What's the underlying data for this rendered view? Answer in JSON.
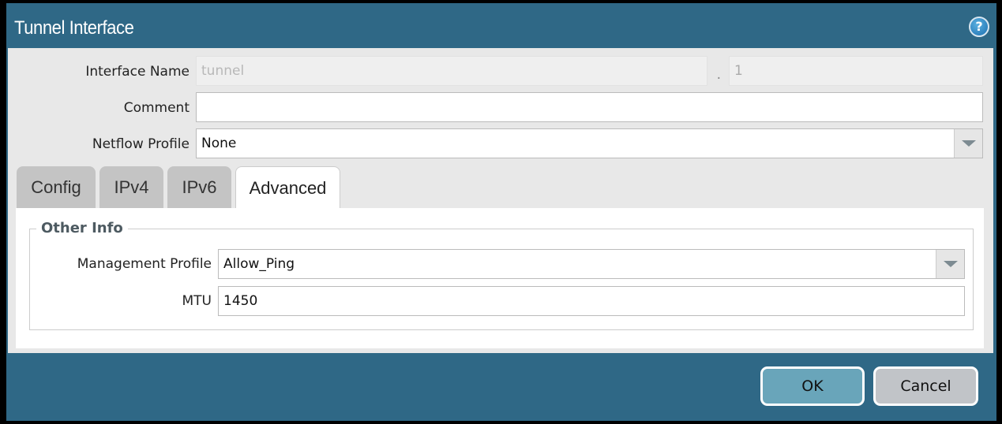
{
  "dialog": {
    "title": "Tunnel Interface",
    "help_icon": "help-icon"
  },
  "form": {
    "interface_name": {
      "label": "Interface Name",
      "value": "tunnel",
      "separator": ".",
      "suffix": "1"
    },
    "comment": {
      "label": "Comment",
      "value": ""
    },
    "netflow_profile": {
      "label": "Netflow Profile",
      "value": "None"
    }
  },
  "tabs": [
    {
      "label": "Config"
    },
    {
      "label": "IPv4"
    },
    {
      "label": "IPv6"
    },
    {
      "label": "Advanced",
      "active": true
    }
  ],
  "advanced": {
    "group_title": "Other Info",
    "management_profile": {
      "label": "Management Profile",
      "value": "Allow_Ping"
    },
    "mtu": {
      "label": "MTU",
      "value": "1450"
    }
  },
  "buttons": {
    "ok": "OK",
    "cancel": "Cancel"
  }
}
